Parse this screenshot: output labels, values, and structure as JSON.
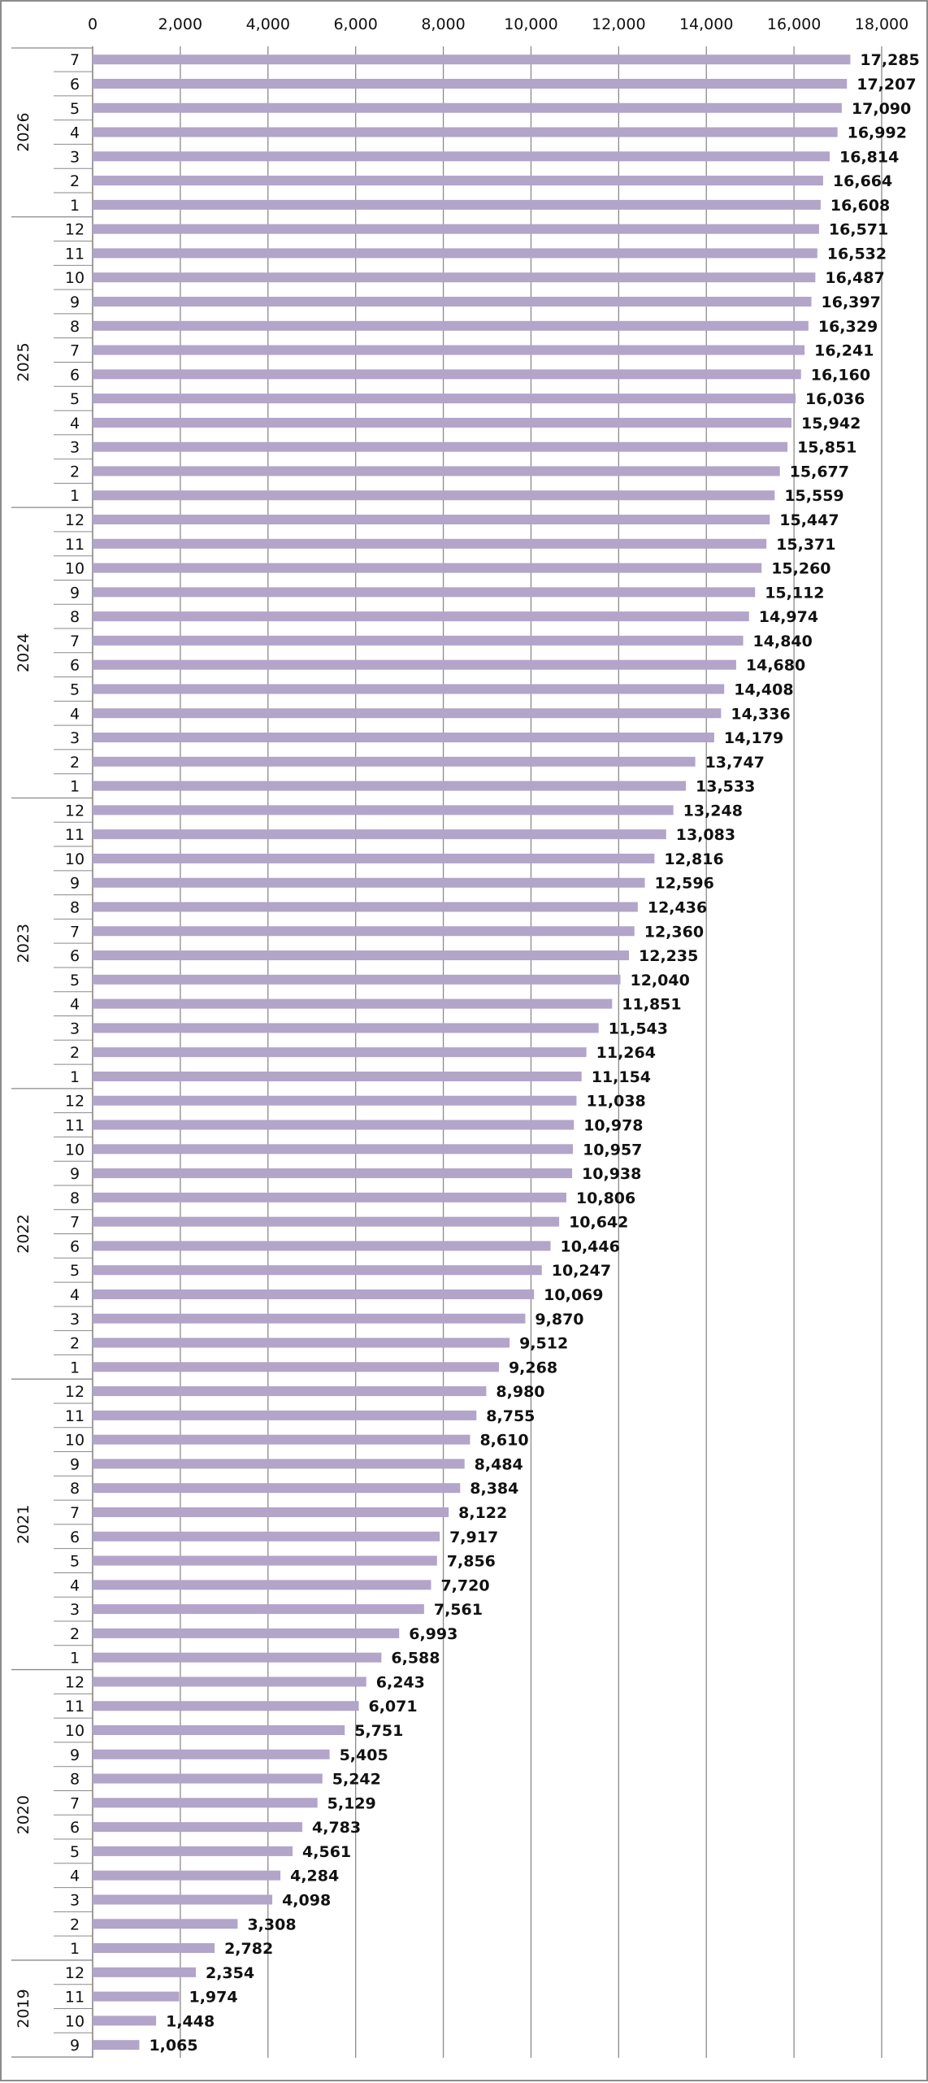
{
  "chart_data": {
    "type": "bar",
    "orientation": "horizontal",
    "title": "",
    "xlabel": "",
    "ylabel": "",
    "xlim": [
      0,
      18000
    ],
    "x_ticks": [
      "0",
      "2,000",
      "4,000",
      "6,000",
      "8,000",
      "10,000",
      "12,000",
      "14,000",
      "16,000",
      "18,000"
    ],
    "gridlines": true,
    "bar_color": "#b3a4c9",
    "groups": [
      {
        "year": "2026",
        "months": [
          "7",
          "6",
          "5",
          "4",
          "3",
          "2",
          "1"
        ],
        "values": [
          17285,
          17207,
          17090,
          16992,
          16814,
          16664,
          16608
        ]
      },
      {
        "year": "2025",
        "months": [
          "12",
          "11",
          "10",
          "9",
          "8",
          "7",
          "6",
          "5",
          "4",
          "3",
          "2",
          "1"
        ],
        "values": [
          16571,
          16532,
          16487,
          16397,
          16329,
          16241,
          16160,
          16036,
          15942,
          15851,
          15677,
          15559
        ]
      },
      {
        "year": "2024",
        "months": [
          "12",
          "11",
          "10",
          "9",
          "8",
          "7",
          "6",
          "5",
          "4",
          "3",
          "2",
          "1"
        ],
        "values": [
          15447,
          15371,
          15260,
          15112,
          14974,
          14840,
          14680,
          14408,
          14336,
          14179,
          13747,
          13533
        ]
      },
      {
        "year": "2023",
        "months": [
          "12",
          "11",
          "10",
          "9",
          "8",
          "7",
          "6",
          "5",
          "4",
          "3",
          "2",
          "1"
        ],
        "values": [
          13248,
          13083,
          12816,
          12596,
          12436,
          12360,
          12235,
          12040,
          11851,
          11543,
          11264,
          11154
        ]
      },
      {
        "year": "2022",
        "months": [
          "12",
          "11",
          "10",
          "9",
          "8",
          "7",
          "6",
          "5",
          "4",
          "3",
          "2",
          "1"
        ],
        "values": [
          11038,
          10978,
          10957,
          10938,
          10806,
          10642,
          10446,
          10247,
          10069,
          9870,
          9512,
          9268
        ]
      },
      {
        "year": "2021",
        "months": [
          "12",
          "11",
          "10",
          "9",
          "8",
          "7",
          "6",
          "5",
          "4",
          "3",
          "2",
          "1"
        ],
        "values": [
          8980,
          8755,
          8610,
          8484,
          8384,
          8122,
          7917,
          7856,
          7720,
          7561,
          6993,
          6588
        ]
      },
      {
        "year": "2020",
        "months": [
          "12",
          "11",
          "10",
          "9",
          "8",
          "7",
          "6",
          "5",
          "4",
          "3",
          "2",
          "1"
        ],
        "values": [
          6243,
          6071,
          5751,
          5405,
          5242,
          5129,
          4783,
          4561,
          4284,
          4098,
          3308,
          2782
        ]
      },
      {
        "year": "2019",
        "months": [
          "12",
          "11",
          "10",
          "9"
        ],
        "values": [
          2354,
          1974,
          1448,
          1065
        ]
      }
    ]
  }
}
